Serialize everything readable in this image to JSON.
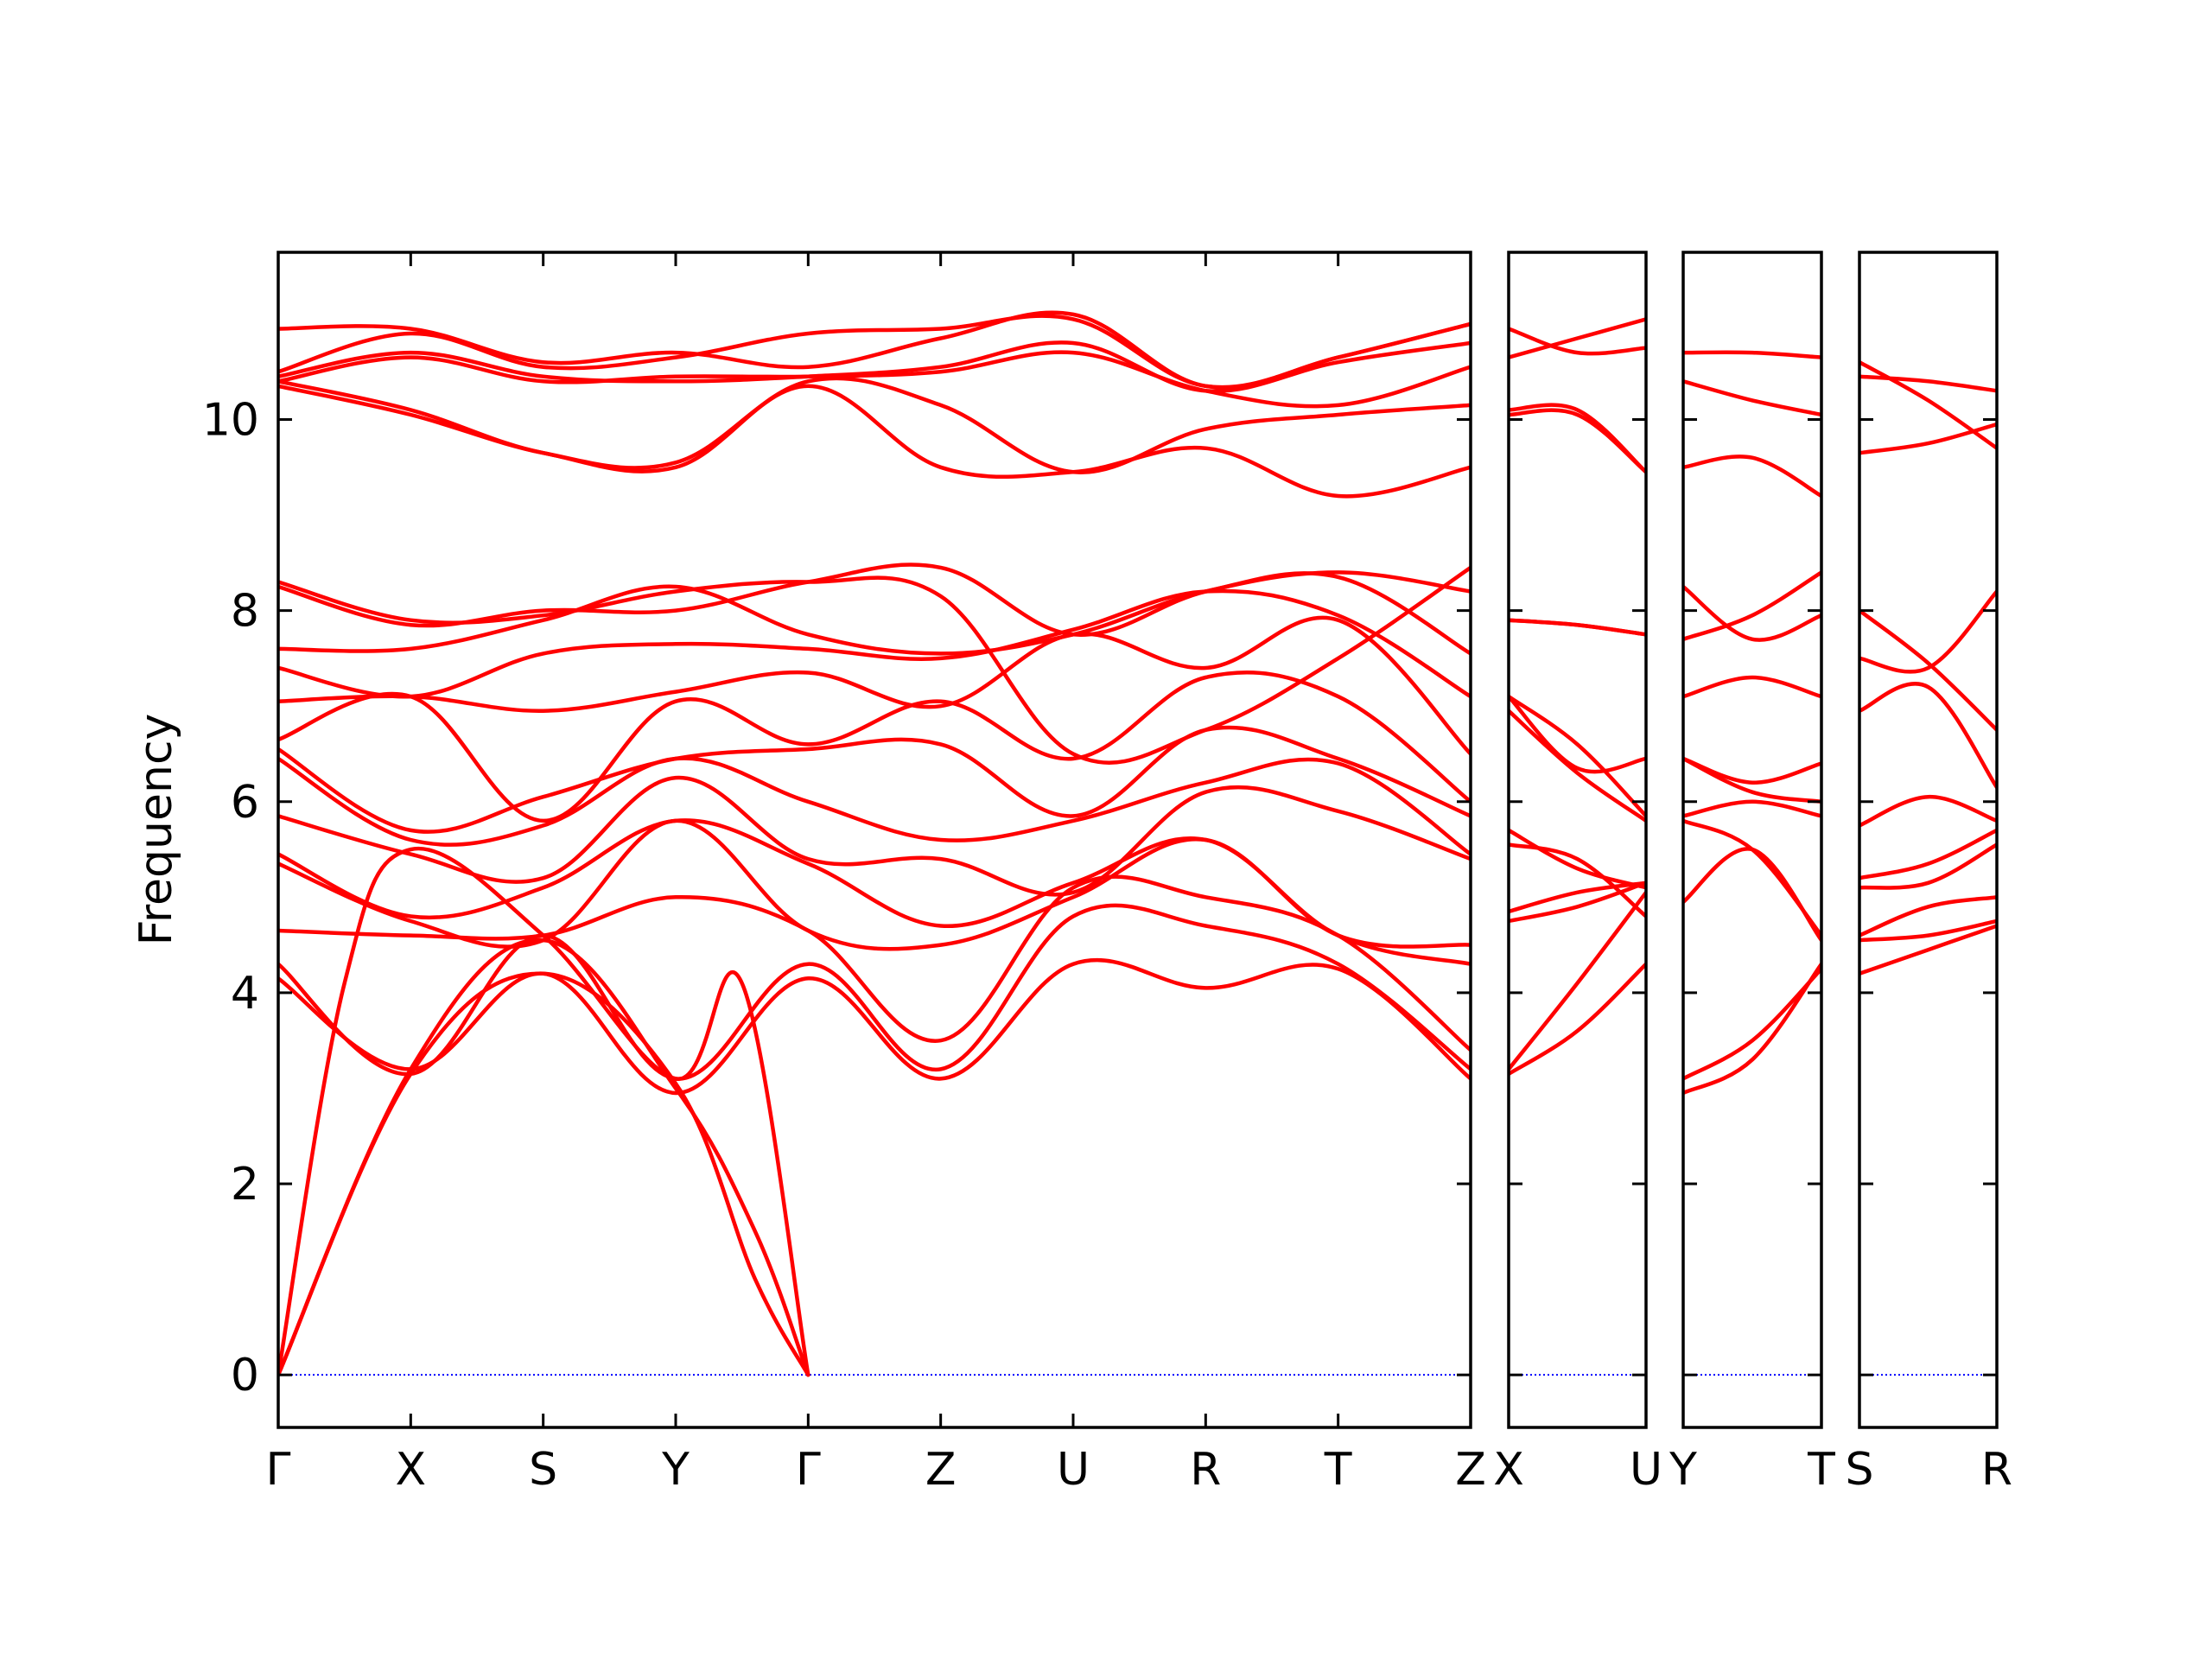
{
  "chart_data": {
    "type": "line",
    "title": "",
    "ylabel": "Frequency",
    "ylim": [
      -0.55,
      11.75
    ],
    "yticks": [
      0,
      2,
      4,
      6,
      8,
      10
    ],
    "zero_line": true,
    "colors": {
      "bands": "#ff0000",
      "zero_line": "#0000ff",
      "axes": "#000000"
    },
    "panels": [
      {
        "labels": [
          "Γ",
          "X",
          "S",
          "Y",
          "Γ",
          "Z",
          "U",
          "R",
          "T",
          "Z"
        ],
        "xlim": [
          0,
          9
        ],
        "series": [
          {
            "x": [
              0,
              1,
              2,
              3,
              3.6,
              4
            ],
            "y": [
              0,
              3.15,
              4.2,
              3.05,
              1.0,
              0
            ]
          },
          {
            "x": [
              0,
              1,
              2,
              3,
              3.6,
              4
            ],
            "y": [
              0,
              3.2,
              4.55,
              3.0,
              1.5,
              0
            ]
          },
          {
            "x": [
              0,
              0.5,
              1,
              2,
              3,
              3.5,
              4
            ],
            "y": [
              0,
              4.1,
              5.5,
              4.6,
              3.1,
              4.1,
              0
            ]
          },
          {
            "x": [
              0,
              1,
              2,
              3,
              4,
              5,
              6,
              7,
              8,
              9
            ],
            "y": [
              4.15,
              3.2,
              4.2,
              2.95,
              4.15,
              3.1,
              4.3,
              4.05,
              4.25,
              3.1
            ]
          },
          {
            "x": [
              0,
              1,
              2,
              3,
              4,
              5,
              6,
              7,
              8,
              9
            ],
            "y": [
              4.3,
              3.15,
              4.6,
              3.1,
              4.3,
              3.2,
              4.8,
              4.7,
              4.3,
              3.2
            ]
          },
          {
            "x": [
              0,
              1,
              2,
              3,
              4,
              5,
              6,
              7,
              8,
              9
            ],
            "y": [
              4.65,
              4.6,
              4.6,
              5.0,
              4.65,
              3.5,
              5.1,
              5.0,
              4.6,
              3.4
            ]
          },
          {
            "x": [
              0,
              1,
              2,
              3,
              4,
              5,
              6,
              7,
              8,
              9
            ],
            "y": [
              5.35,
              4.75,
              4.55,
              5.8,
              4.65,
              4.5,
              5.0,
              5.6,
              4.6,
              4.5
            ]
          },
          {
            "x": [
              0,
              1,
              2,
              3,
              4,
              5,
              6,
              7,
              8,
              9
            ],
            "y": [
              5.45,
              4.8,
              5.1,
              5.8,
              5.35,
              4.7,
              5.15,
              5.6,
              4.6,
              4.3
            ]
          },
          {
            "x": [
              0,
              1,
              2,
              3,
              4,
              5,
              6,
              7,
              8,
              9
            ],
            "y": [
              5.85,
              5.45,
              5.2,
              6.25,
              5.4,
              5.4,
              5.05,
              6.1,
              5.9,
              5.4
            ]
          },
          {
            "x": [
              0,
              1,
              2,
              3,
              4,
              5,
              6,
              7,
              8,
              9
            ],
            "y": [
              6.45,
              5.6,
              5.75,
              6.45,
              6.0,
              5.6,
              5.8,
              6.2,
              6.4,
              5.45
            ]
          },
          {
            "x": [
              0,
              1,
              2,
              3,
              4,
              5,
              6,
              7,
              8,
              9
            ],
            "y": [
              6.55,
              5.7,
              6.05,
              6.45,
              6.55,
              6.6,
              5.85,
              6.75,
              6.45,
              5.85
            ]
          },
          {
            "x": [
              0,
              1,
              2,
              3,
              4,
              5,
              6,
              7,
              8,
              9
            ],
            "y": [
              6.65,
              7.1,
              5.8,
              7.05,
              6.6,
              7.05,
              6.45,
              7.3,
              7.1,
              6.0
            ]
          },
          {
            "x": [
              0,
              1,
              2,
              3,
              4,
              5,
              6,
              7,
              8,
              9
            ],
            "y": [
              7.05,
              7.1,
              6.95,
              7.15,
              7.35,
              7.0,
              7.75,
              7.4,
              7.9,
              6.5
            ]
          },
          {
            "x": [
              0,
              1,
              2,
              3,
              4,
              5,
              6,
              7,
              8,
              9
            ],
            "y": [
              7.4,
              7.1,
              7.55,
              7.65,
              7.6,
              7.5,
              7.8,
              8.2,
              7.95,
              7.1
            ]
          },
          {
            "x": [
              0,
              1,
              2,
              3,
              4,
              5,
              6,
              7,
              8,
              9
            ],
            "y": [
              7.6,
              7.6,
              7.9,
              8.25,
              7.75,
              7.55,
              7.75,
              8.2,
              8.35,
              7.55
            ]
          },
          {
            "x": [
              0,
              1,
              2,
              3,
              4,
              5,
              6,
              7,
              8,
              9
            ],
            "y": [
              8.25,
              7.85,
              8.0,
              8.0,
              8.3,
              8.45,
              7.75,
              8.2,
              8.4,
              8.2
            ]
          },
          {
            "x": [
              0,
              1,
              2,
              3,
              4,
              5,
              6,
              7,
              8,
              9
            ],
            "y": [
              8.3,
              7.9,
              7.95,
              8.2,
              8.3,
              8.15,
              6.5,
              6.75,
              7.5,
              8.45
            ]
          },
          {
            "x": [
              0,
              1,
              2,
              3,
              4,
              5,
              6,
              7,
              8,
              9
            ],
            "y": [
              10.35,
              10.05,
              9.65,
              9.5,
              10.35,
              9.5,
              9.45,
              9.7,
              9.2,
              9.5
            ]
          },
          {
            "x": [
              0,
              1,
              2,
              3,
              4,
              5,
              6,
              7,
              8,
              9
            ],
            "y": [
              10.4,
              10.1,
              9.65,
              9.55,
              10.4,
              10.15,
              9.45,
              9.9,
              10.05,
              10.15
            ]
          },
          {
            "x": [
              0,
              1,
              2,
              3,
              4,
              5,
              6,
              7,
              8,
              9
            ],
            "y": [
              10.4,
              10.65,
              10.4,
              10.45,
              10.45,
              10.5,
              10.7,
              10.3,
              10.15,
              10.55
            ]
          },
          {
            "x": [
              0,
              1,
              2,
              3,
              4,
              5,
              6,
              7,
              8,
              9
            ],
            "y": [
              10.45,
              10.7,
              10.45,
              10.4,
              10.45,
              10.55,
              10.8,
              10.3,
              10.6,
              10.8
            ]
          },
          {
            "x": [
              0,
              1,
              2,
              3,
              4,
              5,
              6,
              7,
              8,
              9
            ],
            "y": [
              10.5,
              10.9,
              10.55,
              10.65,
              10.9,
              10.95,
              11.05,
              10.35,
              10.65,
              11.0
            ]
          },
          {
            "x": [
              0,
              1,
              2,
              3,
              4,
              5,
              6,
              7,
              8,
              9
            ],
            "y": [
              10.95,
              10.95,
              10.6,
              10.7,
              10.55,
              10.85,
              11.1,
              10.35,
              10.65,
              11.0
            ]
          }
        ]
      },
      {
        "labels": [
          "X",
          "U"
        ],
        "xlim": [
          0,
          1
        ],
        "series": [
          {
            "x": [
              0,
              0.5,
              1
            ],
            "y": [
              3.15,
              3.6,
              4.3
            ]
          },
          {
            "x": [
              0,
              0.5,
              1
            ],
            "y": [
              3.2,
              4.1,
              5.05
            ]
          },
          {
            "x": [
              0,
              0.5,
              1
            ],
            "y": [
              4.75,
              4.9,
              5.15
            ]
          },
          {
            "x": [
              0,
              0.5,
              1
            ],
            "y": [
              4.85,
              5.05,
              5.15
            ]
          },
          {
            "x": [
              0,
              0.5,
              1
            ],
            "y": [
              5.55,
              5.4,
              4.8
            ]
          },
          {
            "x": [
              0,
              0.5,
              1
            ],
            "y": [
              5.7,
              5.3,
              5.1
            ]
          },
          {
            "x": [
              0,
              0.5,
              1
            ],
            "y": [
              6.95,
              6.3,
              5.8
            ]
          },
          {
            "x": [
              0,
              0.5,
              1
            ],
            "y": [
              7.1,
              6.6,
              5.85
            ]
          },
          {
            "x": [
              0,
              0.5,
              1
            ],
            "y": [
              7.1,
              6.35,
              6.45
            ]
          },
          {
            "x": [
              0,
              0.5,
              1
            ],
            "y": [
              7.9,
              7.85,
              7.75
            ]
          },
          {
            "x": [
              0,
              0.5,
              1
            ],
            "y": [
              7.9,
              7.85,
              7.75
            ]
          },
          {
            "x": [
              0,
              0.5,
              1
            ],
            "y": [
              10.05,
              10.05,
              9.45
            ]
          },
          {
            "x": [
              0,
              0.5,
              1
            ],
            "y": [
              10.1,
              10.1,
              9.45
            ]
          },
          {
            "x": [
              0,
              0.5,
              1
            ],
            "y": [
              10.65,
              10.85,
              11.05
            ]
          },
          {
            "x": [
              0,
              0.5,
              1
            ],
            "y": [
              10.95,
              10.7,
              10.75
            ]
          }
        ]
      },
      {
        "labels": [
          "Y",
          "T"
        ],
        "xlim": [
          0,
          1
        ],
        "series": [
          {
            "x": [
              0,
              0.5,
              1
            ],
            "y": [
              2.95,
              3.3,
              4.3
            ]
          },
          {
            "x": [
              0,
              0.5,
              1
            ],
            "y": [
              3.1,
              3.5,
              4.25
            ]
          },
          {
            "x": [
              0,
              0.5,
              1
            ],
            "y": [
              4.95,
              5.5,
              4.55
            ]
          },
          {
            "x": [
              0,
              0.5,
              1
            ],
            "y": [
              5.8,
              5.5,
              4.6
            ]
          },
          {
            "x": [
              0,
              0.5,
              1
            ],
            "y": [
              5.85,
              6.0,
              5.85
            ]
          },
          {
            "x": [
              0,
              0.5,
              1
            ],
            "y": [
              6.45,
              6.1,
              6.0
            ]
          },
          {
            "x": [
              0,
              0.5,
              1
            ],
            "y": [
              6.45,
              6.2,
              6.4
            ]
          },
          {
            "x": [
              0,
              0.5,
              1
            ],
            "y": [
              7.1,
              7.3,
              7.1
            ]
          },
          {
            "x": [
              0,
              0.5,
              1
            ],
            "y": [
              7.7,
              7.95,
              8.4
            ]
          },
          {
            "x": [
              0,
              0.5,
              1
            ],
            "y": [
              8.25,
              7.7,
              7.95
            ]
          },
          {
            "x": [
              0,
              0.5,
              1
            ],
            "y": [
              9.5,
              9.6,
              9.2
            ]
          },
          {
            "x": [
              0,
              0.5,
              1
            ],
            "y": [
              10.4,
              10.2,
              10.05
            ]
          },
          {
            "x": [
              0,
              0.5,
              1
            ],
            "y": [
              10.7,
              10.7,
              10.65
            ]
          }
        ]
      },
      {
        "labels": [
          "S",
          "R"
        ],
        "xlim": [
          0,
          1
        ],
        "series": [
          {
            "x": [
              0,
              0.5,
              1
            ],
            "y": [
              4.2,
              4.45,
              4.7
            ]
          },
          {
            "x": [
              0,
              0.5,
              1
            ],
            "y": [
              4.55,
              4.6,
              4.75
            ]
          },
          {
            "x": [
              0,
              0.5,
              1
            ],
            "y": [
              4.6,
              4.9,
              5.0
            ]
          },
          {
            "x": [
              0,
              0.5,
              1
            ],
            "y": [
              5.1,
              5.15,
              5.55
            ]
          },
          {
            "x": [
              0,
              0.5,
              1
            ],
            "y": [
              5.2,
              5.35,
              5.7
            ]
          },
          {
            "x": [
              0,
              0.5,
              1
            ],
            "y": [
              5.75,
              6.05,
              5.8
            ]
          },
          {
            "x": [
              0,
              0.5,
              1
            ],
            "y": [
              6.95,
              7.2,
              6.15
            ]
          },
          {
            "x": [
              0,
              0.5,
              1
            ],
            "y": [
              7.5,
              7.4,
              8.2
            ]
          },
          {
            "x": [
              0,
              0.5,
              1
            ],
            "y": [
              8.0,
              7.45,
              6.75
            ]
          },
          {
            "x": [
              0,
              0.5,
              1
            ],
            "y": [
              9.65,
              9.75,
              9.95
            ]
          },
          {
            "x": [
              0,
              0.5,
              1
            ],
            "y": [
              10.45,
              10.4,
              10.3
            ]
          },
          {
            "x": [
              0,
              0.5,
              1
            ],
            "y": [
              10.6,
              10.2,
              9.7
            ]
          }
        ]
      }
    ]
  }
}
